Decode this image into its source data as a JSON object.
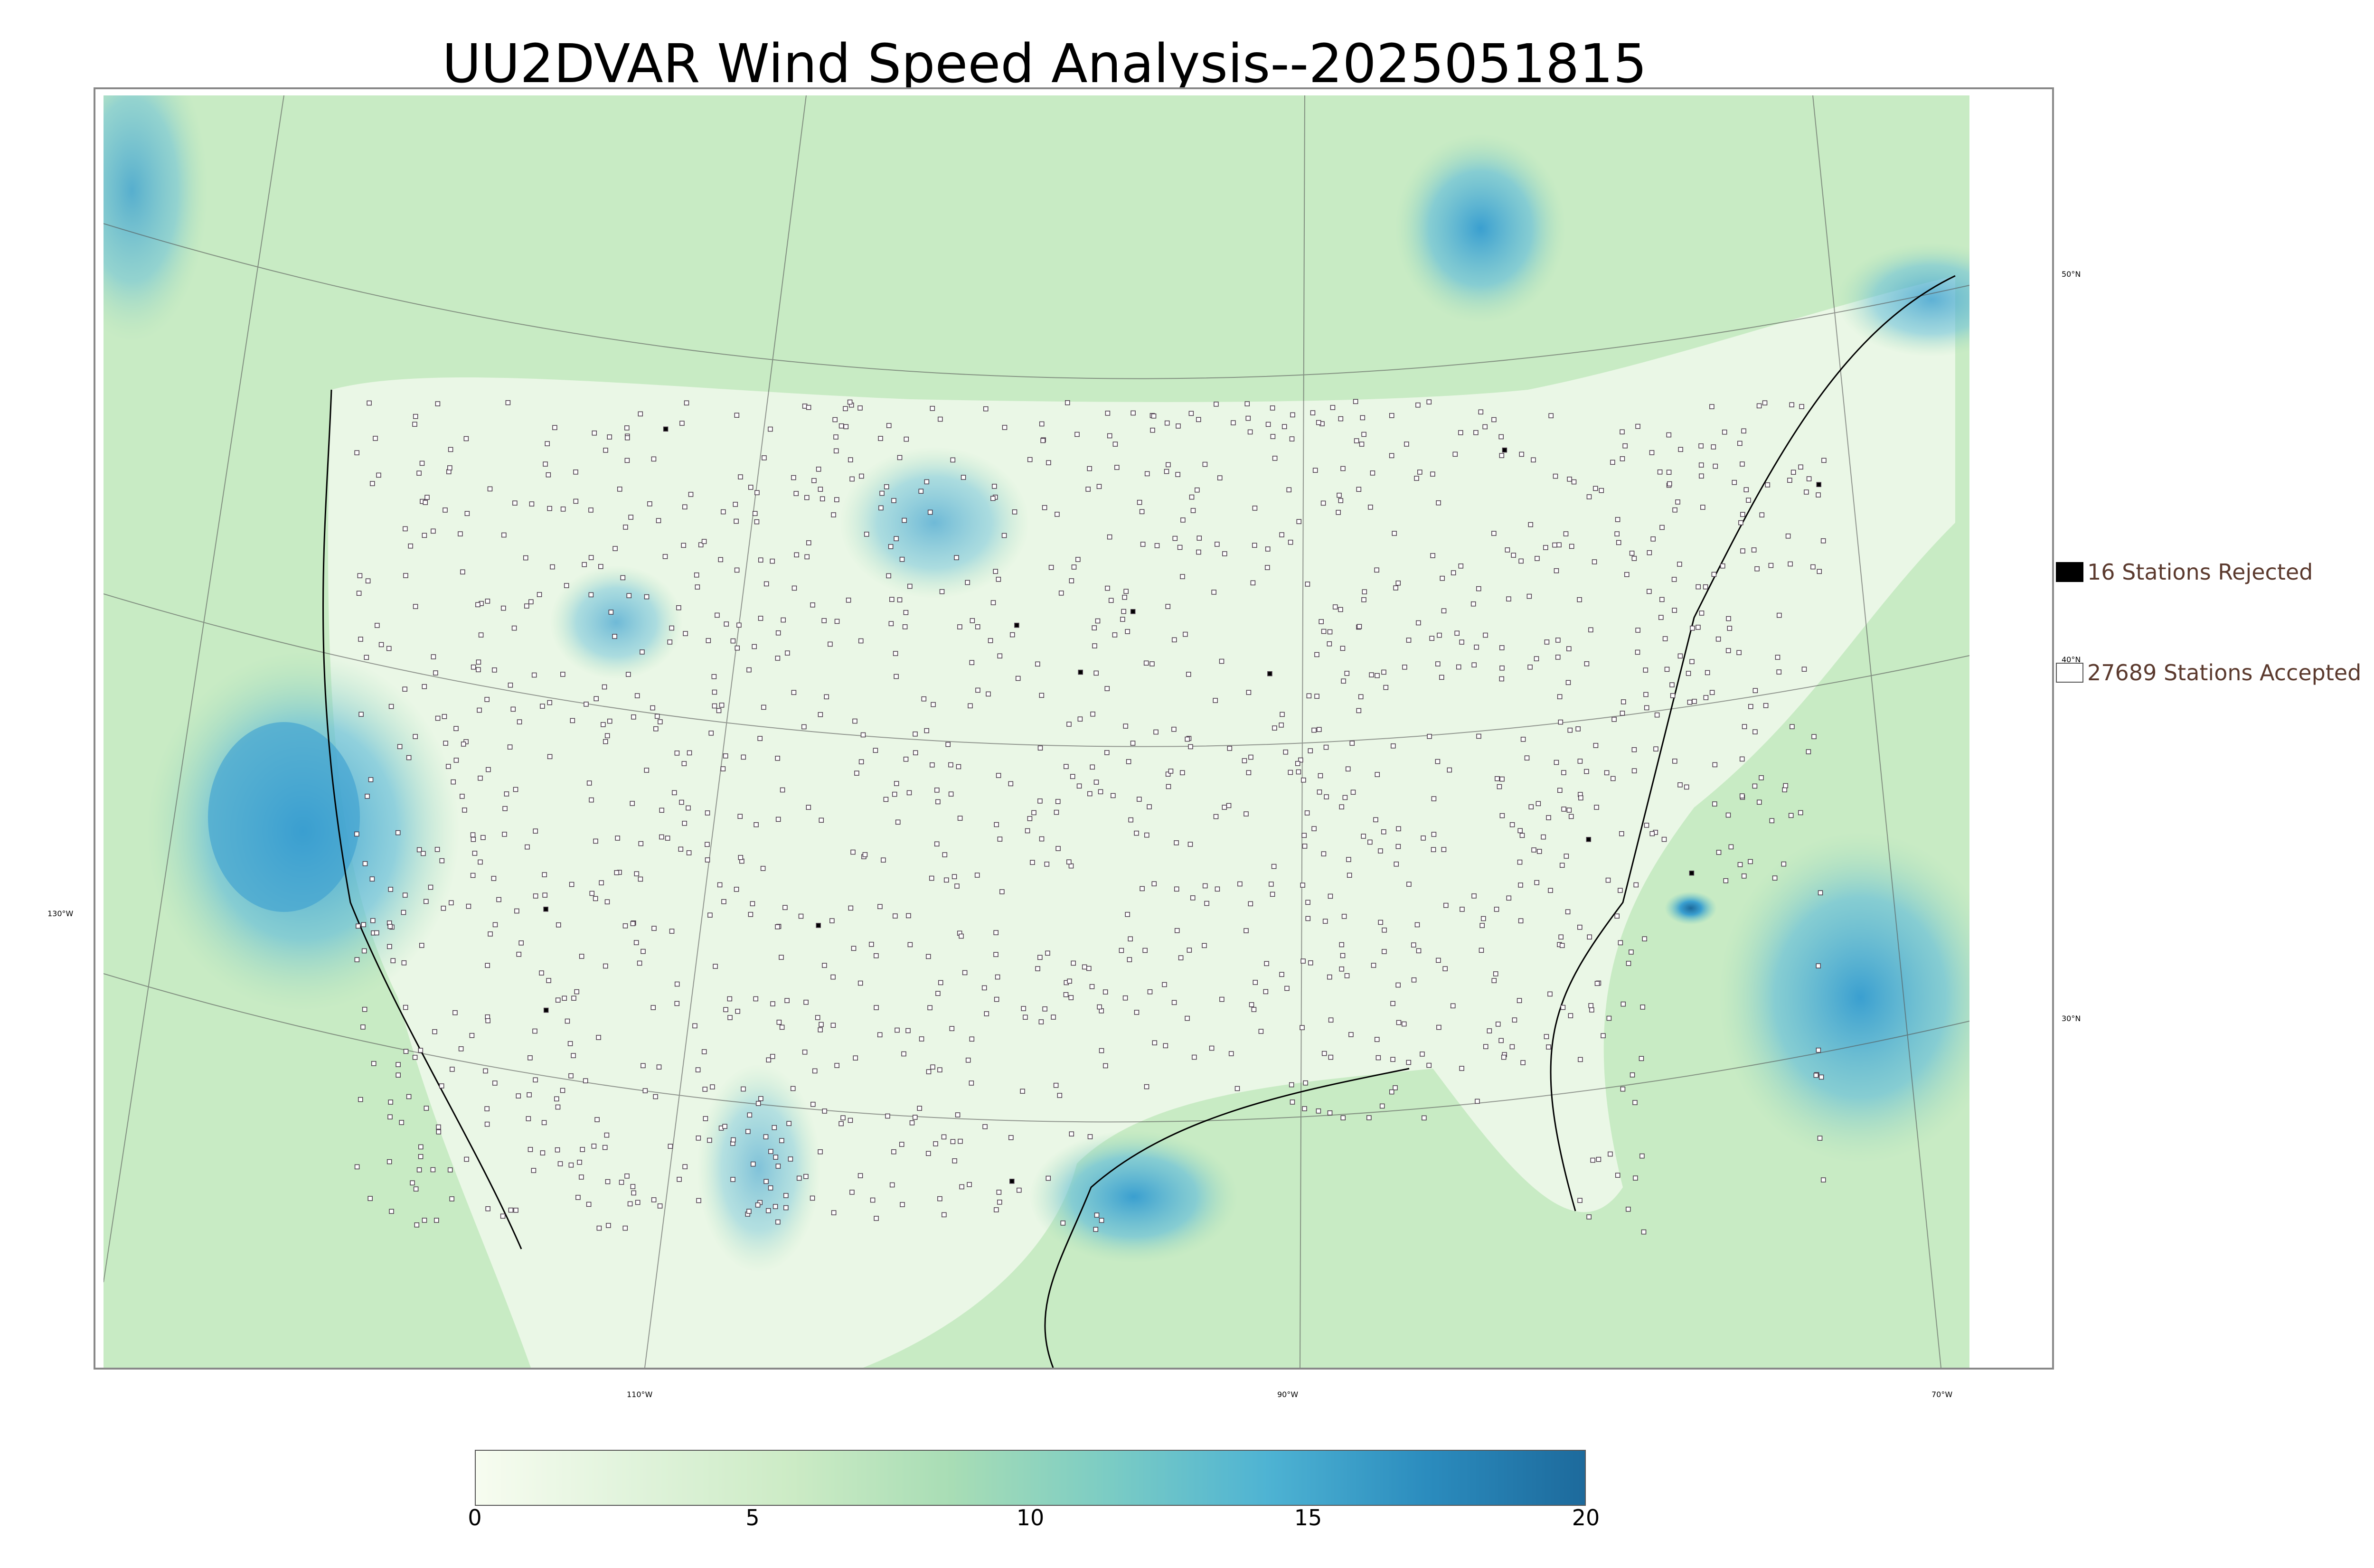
{
  "title": "UU2DVAR Wind Speed Analysis--2025051815",
  "map": {
    "lat_labels": [
      "50°N",
      "40°N",
      "30°N"
    ],
    "lon_labels": [
      "130°W",
      "110°W",
      "90°W",
      "70°W"
    ]
  },
  "legend": {
    "rejected_label": "16 Stations Rejected",
    "accepted_label": "27689 Stations Accepted",
    "rejected_color": "#000000",
    "accepted_color": "#ffffff"
  },
  "colorbar": {
    "ticks": [
      "0",
      "5",
      "10",
      "15",
      "20"
    ],
    "range": [
      0,
      20
    ],
    "colors": [
      "#f7fcf0",
      "#e0f3db",
      "#ccebc5",
      "#a8ddb5",
      "#7bccc4",
      "#4eb3d3",
      "#2b8cbe",
      "#1d6a9c"
    ]
  }
}
